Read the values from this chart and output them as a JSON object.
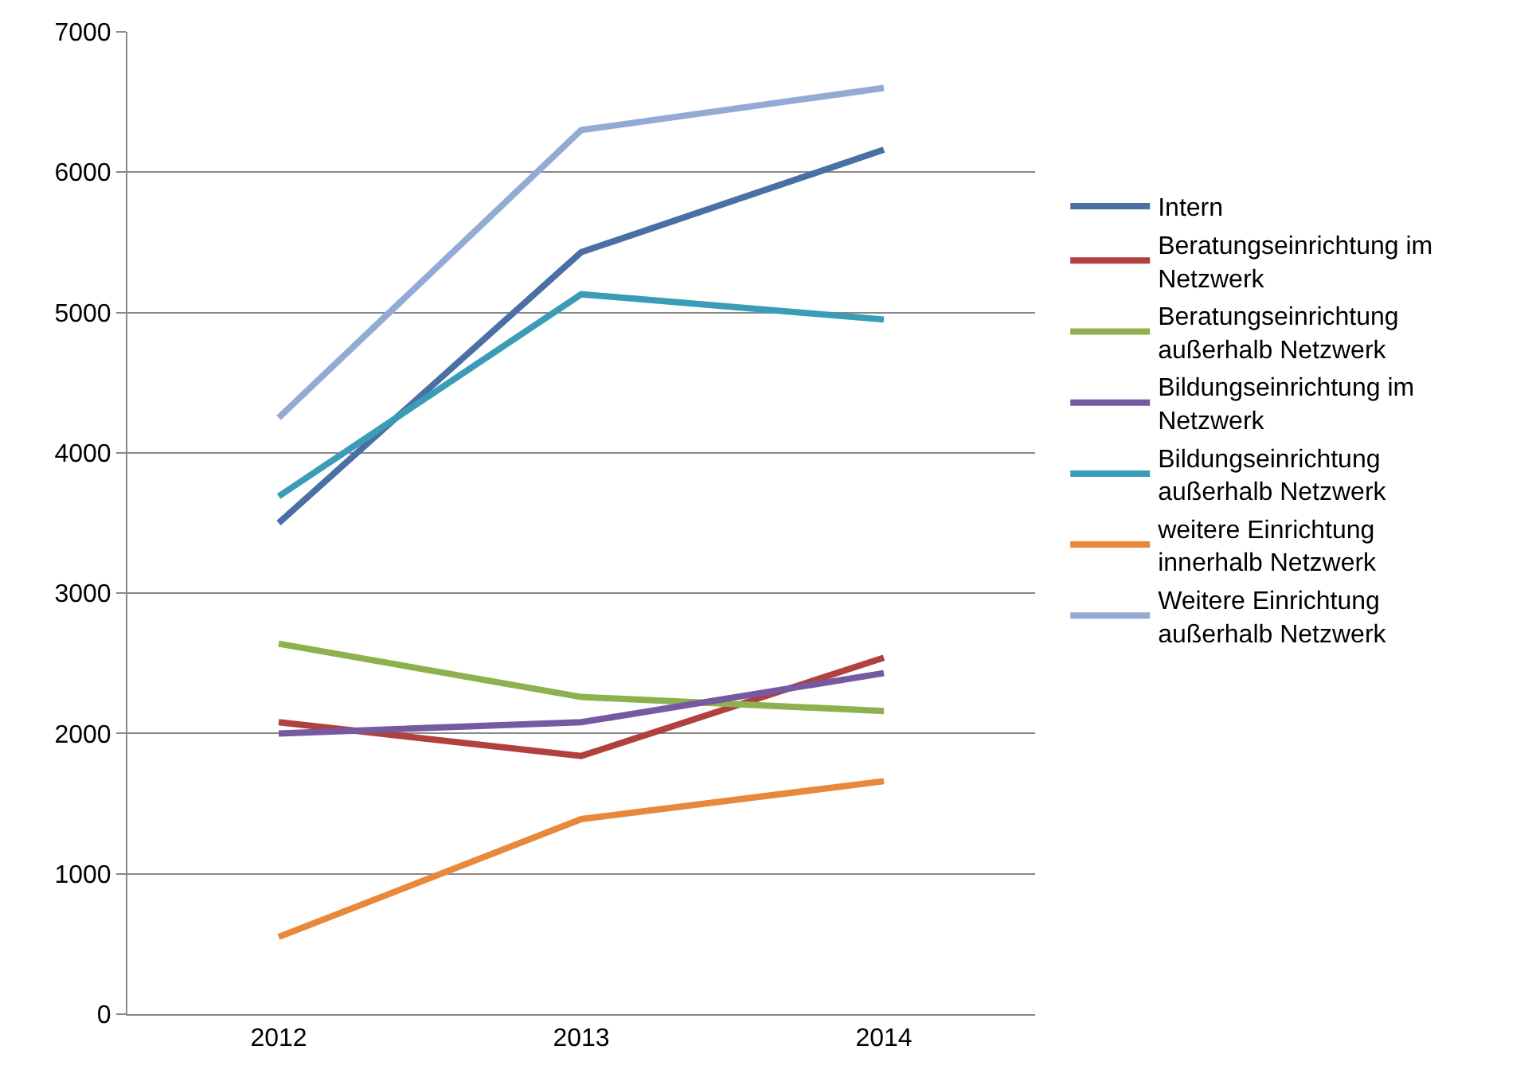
{
  "chart_data": {
    "type": "line",
    "categories": [
      "2012",
      "2013",
      "2014"
    ],
    "series": [
      {
        "name": "Intern",
        "color": "#4a6fa5",
        "values": [
          3500,
          5430,
          6160
        ]
      },
      {
        "name": "Beratungseinrichtung im Netzwerk",
        "color": "#b0413e",
        "values": [
          2080,
          1840,
          2540
        ]
      },
      {
        "name": "Beratungseinrichtung außerhalb Netzwerk",
        "color": "#8db14e",
        "values": [
          2640,
          2260,
          2160
        ]
      },
      {
        "name": "Bildungseinrichtung im Netzwerk",
        "color": "#7659a0",
        "values": [
          2000,
          2080,
          2430
        ]
      },
      {
        "name": "Bildungseinrichtung außerhalb Netzwerk",
        "color": "#3a9cb6",
        "values": [
          3690,
          5130,
          4950
        ]
      },
      {
        "name": "weitere Einrichtung innerhalb Netzwerk",
        "color": "#e8883a",
        "values": [
          550,
          1390,
          1660
        ]
      },
      {
        "name": "Weitere Einrichtung außerhalb Netzwerk",
        "color": "#93abd4",
        "values": [
          4250,
          6300,
          6600
        ]
      }
    ],
    "ylim": [
      0,
      7000
    ],
    "yticks": [
      0,
      1000,
      2000,
      3000,
      4000,
      5000,
      6000,
      7000
    ],
    "grid": "y",
    "legend": "right",
    "marker": "none",
    "line_style": "solid"
  }
}
